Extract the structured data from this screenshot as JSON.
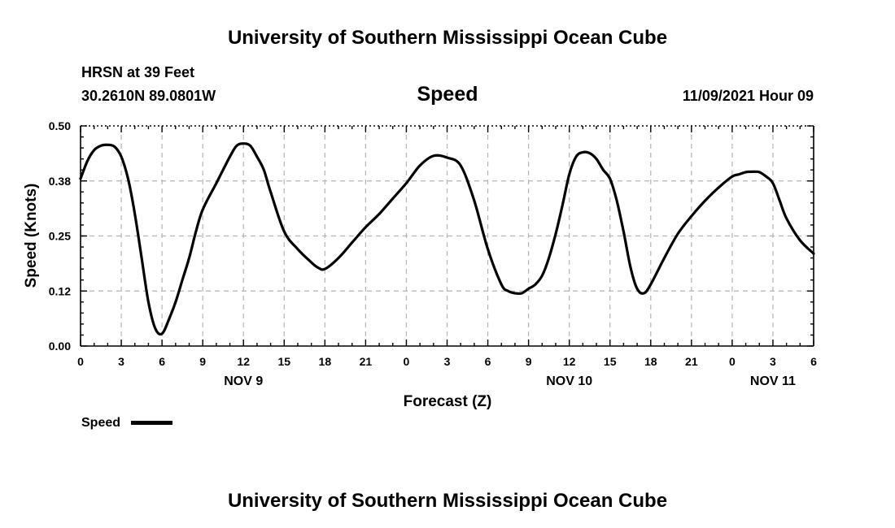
{
  "header": {
    "title": "University of Southern Mississippi Ocean Cube",
    "station": "HRSN at 39 Feet",
    "coords": "30.2610N  89.0801W",
    "datetime": "11/09/2021 Hour 09"
  },
  "footer": {
    "title": "University of Southern Mississippi Ocean Cube"
  },
  "chart_data": {
    "type": "line",
    "title": "Speed",
    "xlabel": "Forecast (Z)",
    "ylabel": "Speed (Knots)",
    "ylim": [
      0,
      0.5
    ],
    "xlim": [
      0,
      54
    ],
    "grid": true,
    "legend_position": "bottom-left",
    "y_ticks": [
      "0.00",
      "0.12",
      "0.25",
      "0.38",
      "0.50"
    ],
    "y_tick_values": [
      0,
      0.125,
      0.25,
      0.375,
      0.5
    ],
    "x_ticks": [
      "0",
      "3",
      "6",
      "9",
      "12",
      "15",
      "18",
      "21",
      "0",
      "3",
      "6",
      "9",
      "12",
      "15",
      "18",
      "21",
      "0",
      "3",
      "6"
    ],
    "x_day_labels": [
      {
        "label": "NOV 9",
        "hour": 12
      },
      {
        "label": "NOV 10",
        "hour": 36
      },
      {
        "label": "NOV 11",
        "hour": 51
      }
    ],
    "series": [
      {
        "name": "Speed",
        "color": "#000000",
        "x": [
          0,
          0.5,
          1,
          1.5,
          2,
          2.5,
          3,
          3.5,
          4,
          4.5,
          5,
          5.5,
          6,
          6.5,
          7,
          7.5,
          8,
          8.5,
          9,
          10,
          11,
          11.5,
          12,
          12.5,
          13,
          13.5,
          14,
          15,
          16,
          17,
          17.5,
          18,
          19,
          20,
          21,
          22,
          23,
          24,
          25,
          26,
          27,
          28,
          29,
          30,
          31,
          31.5,
          32,
          32.5,
          33,
          33.5,
          34,
          34.5,
          35,
          35.5,
          36,
          36.5,
          37,
          37.5,
          38,
          38.5,
          39,
          39.5,
          40,
          40.5,
          41,
          41.5,
          42,
          43,
          44,
          45,
          46,
          47,
          48,
          48.5,
          49,
          49.5,
          50,
          50.5,
          51,
          51.5,
          52,
          53,
          54
        ],
        "y": [
          0.38,
          0.42,
          0.445,
          0.455,
          0.457,
          0.453,
          0.43,
          0.38,
          0.3,
          0.2,
          0.1,
          0.04,
          0.028,
          0.06,
          0.1,
          0.15,
          0.2,
          0.26,
          0.31,
          0.37,
          0.43,
          0.455,
          0.46,
          0.455,
          0.43,
          0.4,
          0.35,
          0.26,
          0.22,
          0.19,
          0.178,
          0.175,
          0.2,
          0.235,
          0.27,
          0.3,
          0.335,
          0.37,
          0.41,
          0.432,
          0.428,
          0.41,
          0.33,
          0.22,
          0.14,
          0.125,
          0.12,
          0.12,
          0.13,
          0.14,
          0.16,
          0.2,
          0.255,
          0.32,
          0.39,
          0.43,
          0.44,
          0.438,
          0.425,
          0.4,
          0.38,
          0.33,
          0.26,
          0.18,
          0.13,
          0.12,
          0.14,
          0.2,
          0.255,
          0.295,
          0.33,
          0.36,
          0.385,
          0.39,
          0.395,
          0.396,
          0.395,
          0.385,
          0.37,
          0.33,
          0.29,
          0.24,
          0.21
        ]
      }
    ]
  }
}
